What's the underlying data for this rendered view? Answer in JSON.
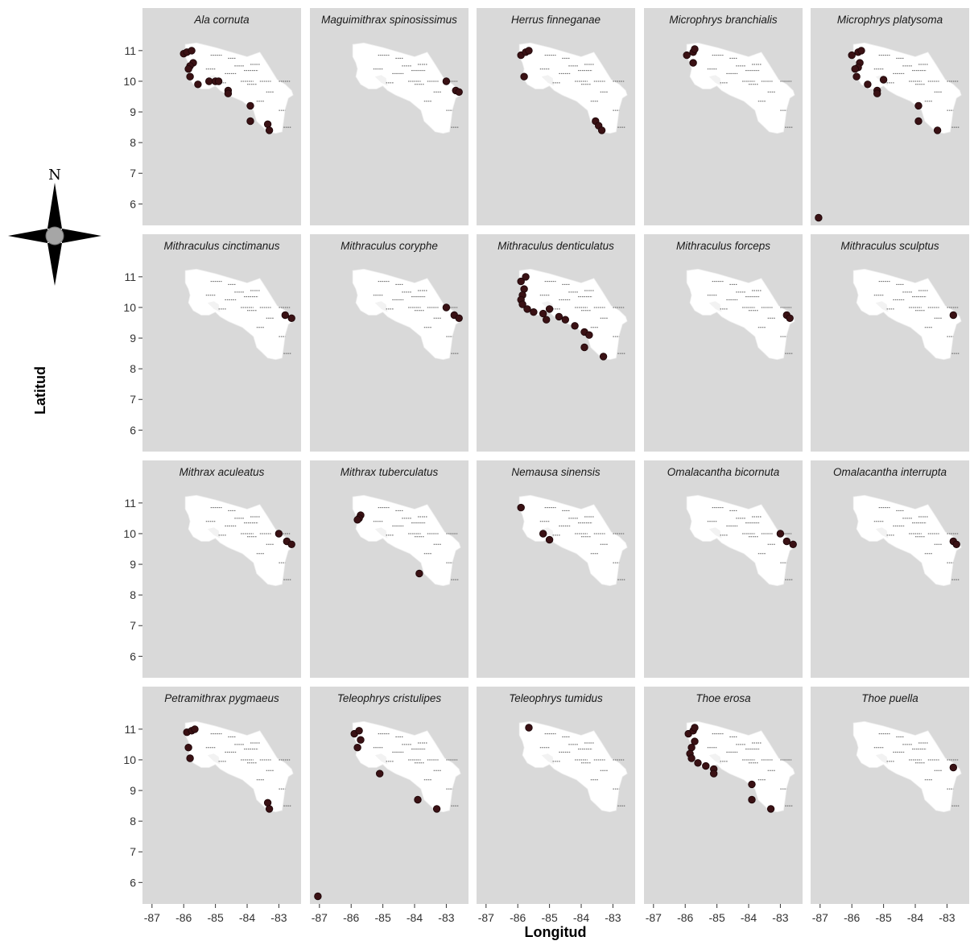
{
  "chart_data": {
    "type": "scatter",
    "facet_layout": {
      "rows": 4,
      "cols": 5
    },
    "xlabel": "Longitud",
    "ylabel": "Latitud",
    "xlim": [
      -87.3,
      -82.3
    ],
    "ylim": [
      5.3,
      11.6
    ],
    "xticks": [
      -87,
      -86,
      -85,
      -84,
      -83
    ],
    "yticks": [
      6,
      7,
      8,
      9,
      10,
      11
    ],
    "grid": false,
    "panel_background": "#d9d9d9",
    "land_color": "#ffffff",
    "point_color": "#3a1114",
    "compass": {
      "letter": "N",
      "icon": "compass-rose-icon"
    },
    "panels": [
      {
        "title": "Ala cornuta",
        "points": [
          [
            -86.0,
            10.9
          ],
          [
            -85.9,
            10.95
          ],
          [
            -85.75,
            11.0
          ],
          [
            -85.7,
            10.6
          ],
          [
            -85.8,
            10.5
          ],
          [
            -85.85,
            10.4
          ],
          [
            -85.8,
            10.15
          ],
          [
            -85.55,
            9.9
          ],
          [
            -85.2,
            10.0
          ],
          [
            -85.0,
            10.0
          ],
          [
            -84.9,
            10.0
          ],
          [
            -84.6,
            9.7
          ],
          [
            -84.6,
            9.6
          ],
          [
            -83.9,
            9.2
          ],
          [
            -83.9,
            8.7
          ],
          [
            -83.35,
            8.6
          ],
          [
            -83.3,
            8.4
          ]
        ]
      },
      {
        "title": "Maguimithrax spinosissimus",
        "points": [
          [
            -83.0,
            10.0
          ],
          [
            -82.7,
            9.7
          ],
          [
            -82.6,
            9.65
          ]
        ]
      },
      {
        "title": "Herrus finneganae",
        "points": [
          [
            -85.9,
            10.85
          ],
          [
            -85.75,
            10.95
          ],
          [
            -85.65,
            11.0
          ],
          [
            -85.8,
            10.15
          ],
          [
            -83.55,
            8.7
          ],
          [
            -83.45,
            8.55
          ],
          [
            -83.35,
            8.4
          ]
        ]
      },
      {
        "title": "Microphrys branchialis",
        "points": [
          [
            -85.95,
            10.85
          ],
          [
            -85.75,
            10.95
          ],
          [
            -85.7,
            11.05
          ],
          [
            -85.75,
            10.6
          ]
        ]
      },
      {
        "title": "Microphrys platysoma",
        "points": [
          [
            -86.0,
            10.85
          ],
          [
            -85.8,
            10.95
          ],
          [
            -85.7,
            11.0
          ],
          [
            -85.75,
            10.6
          ],
          [
            -85.8,
            10.45
          ],
          [
            -85.9,
            10.4
          ],
          [
            -85.85,
            10.15
          ],
          [
            -85.5,
            9.9
          ],
          [
            -85.2,
            9.7
          ],
          [
            -85.2,
            9.6
          ],
          [
            -85.0,
            10.05
          ],
          [
            -83.9,
            9.2
          ],
          [
            -83.9,
            8.7
          ],
          [
            -83.3,
            8.4
          ],
          [
            -87.05,
            5.55
          ]
        ]
      },
      {
        "title": "Mithraculus cinctimanus",
        "points": [
          [
            -82.8,
            9.75
          ],
          [
            -82.6,
            9.65
          ]
        ]
      },
      {
        "title": "Mithraculus coryphe",
        "points": [
          [
            -83.0,
            10.0
          ],
          [
            -82.75,
            9.75
          ],
          [
            -82.6,
            9.65
          ]
        ]
      },
      {
        "title": "Mithraculus denticulatus",
        "points": [
          [
            -85.9,
            10.85
          ],
          [
            -85.75,
            11.0
          ],
          [
            -85.8,
            10.6
          ],
          [
            -85.85,
            10.4
          ],
          [
            -85.9,
            10.25
          ],
          [
            -85.85,
            10.1
          ],
          [
            -85.7,
            9.95
          ],
          [
            -85.5,
            9.85
          ],
          [
            -85.2,
            9.8
          ],
          [
            -85.1,
            9.6
          ],
          [
            -85.0,
            9.95
          ],
          [
            -84.7,
            9.7
          ],
          [
            -84.5,
            9.6
          ],
          [
            -84.2,
            9.4
          ],
          [
            -83.9,
            9.2
          ],
          [
            -83.75,
            9.1
          ],
          [
            -83.9,
            8.7
          ],
          [
            -83.3,
            8.4
          ]
        ]
      },
      {
        "title": "Mithraculus forceps",
        "points": [
          [
            -82.8,
            9.75
          ],
          [
            -82.7,
            9.65
          ]
        ]
      },
      {
        "title": "Mithraculus sculptus",
        "points": [
          [
            -82.8,
            9.75
          ]
        ]
      },
      {
        "title": "Mithrax aculeatus",
        "points": [
          [
            -83.0,
            10.0
          ],
          [
            -82.75,
            9.75
          ],
          [
            -82.6,
            9.65
          ]
        ]
      },
      {
        "title": "Mithrax tuberculatus",
        "points": [
          [
            -85.7,
            10.6
          ],
          [
            -85.75,
            10.5
          ],
          [
            -85.8,
            10.45
          ],
          [
            -83.85,
            8.7
          ]
        ]
      },
      {
        "title": "Nemausa sinensis",
        "points": [
          [
            -85.9,
            10.85
          ],
          [
            -85.2,
            10.0
          ],
          [
            -85.0,
            9.8
          ]
        ]
      },
      {
        "title": "Omalacantha bicornuta",
        "points": [
          [
            -83.0,
            10.0
          ],
          [
            -82.8,
            9.75
          ],
          [
            -82.6,
            9.65
          ]
        ]
      },
      {
        "title": "Omalacantha interrupta",
        "points": [
          [
            -82.8,
            9.75
          ],
          [
            -82.7,
            9.65
          ]
        ]
      },
      {
        "title": "Petramithrax pygmaeus",
        "points": [
          [
            -85.9,
            10.9
          ],
          [
            -85.75,
            10.95
          ],
          [
            -85.65,
            11.0
          ],
          [
            -85.85,
            10.4
          ],
          [
            -85.8,
            10.05
          ],
          [
            -83.35,
            8.6
          ],
          [
            -83.3,
            8.4
          ]
        ]
      },
      {
        "title": "Teleophrys cristulipes",
        "points": [
          [
            -85.9,
            10.85
          ],
          [
            -85.75,
            10.95
          ],
          [
            -85.7,
            10.65
          ],
          [
            -85.8,
            10.4
          ],
          [
            -85.1,
            9.55
          ],
          [
            -83.9,
            8.7
          ],
          [
            -83.3,
            8.4
          ],
          [
            -87.05,
            5.55
          ]
        ]
      },
      {
        "title": "Teleophrys tumidus",
        "points": [
          [
            -85.65,
            11.05
          ]
        ]
      },
      {
        "title": "Thoe erosa",
        "points": [
          [
            -85.9,
            10.85
          ],
          [
            -85.75,
            10.95
          ],
          [
            -85.7,
            11.05
          ],
          [
            -85.7,
            10.6
          ],
          [
            -85.8,
            10.4
          ],
          [
            -85.85,
            10.2
          ],
          [
            -85.8,
            10.05
          ],
          [
            -85.6,
            9.9
          ],
          [
            -85.35,
            9.8
          ],
          [
            -85.1,
            9.7
          ],
          [
            -85.1,
            9.55
          ],
          [
            -83.9,
            9.2
          ],
          [
            -83.9,
            8.7
          ],
          [
            -83.3,
            8.4
          ]
        ]
      },
      {
        "title": "Thoe puella",
        "points": [
          [
            -82.8,
            9.75
          ]
        ]
      }
    ]
  }
}
